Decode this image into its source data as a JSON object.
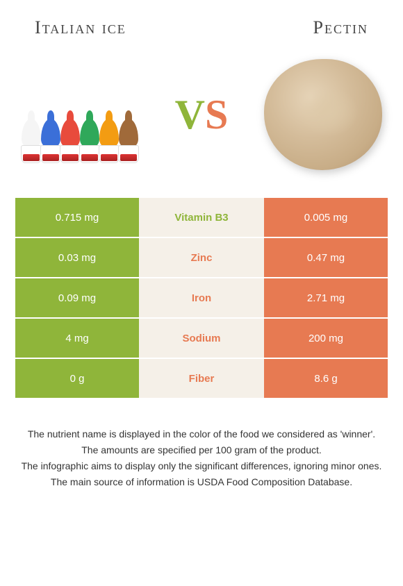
{
  "titles": {
    "left": "Italian ice",
    "right": "Pectin"
  },
  "vs": {
    "v": "V",
    "s": "S"
  },
  "colors": {
    "left_bg": "#8fb53a",
    "right_bg": "#e77a52",
    "mid_bg": "#f5f0e8",
    "left_text": "#8fb53a",
    "right_text": "#e77a52"
  },
  "cone_colors": [
    "#f5f5f5",
    "#3b6fd8",
    "#e84b3c",
    "#2fa85a",
    "#f39c12",
    "#a06a3a"
  ],
  "rows": [
    {
      "left": "0.715 mg",
      "label": "Vitamin B3",
      "right": "0.005 mg",
      "winner": "left"
    },
    {
      "left": "0.03 mg",
      "label": "Zinc",
      "right": "0.47 mg",
      "winner": "right"
    },
    {
      "left": "0.09 mg",
      "label": "Iron",
      "right": "2.71 mg",
      "winner": "right"
    },
    {
      "left": "4 mg",
      "label": "Sodium",
      "right": "200 mg",
      "winner": "right"
    },
    {
      "left": "0 g",
      "label": "Fiber",
      "right": "8.6 g",
      "winner": "right"
    }
  ],
  "footer": [
    "The nutrient name is displayed in the color of the food we considered as 'winner'.",
    "The amounts are specified per 100 gram of the product.",
    "The infographic aims to display only the significant differences, ignoring minor ones.",
    "The main source of information is USDA Food Composition Database."
  ]
}
